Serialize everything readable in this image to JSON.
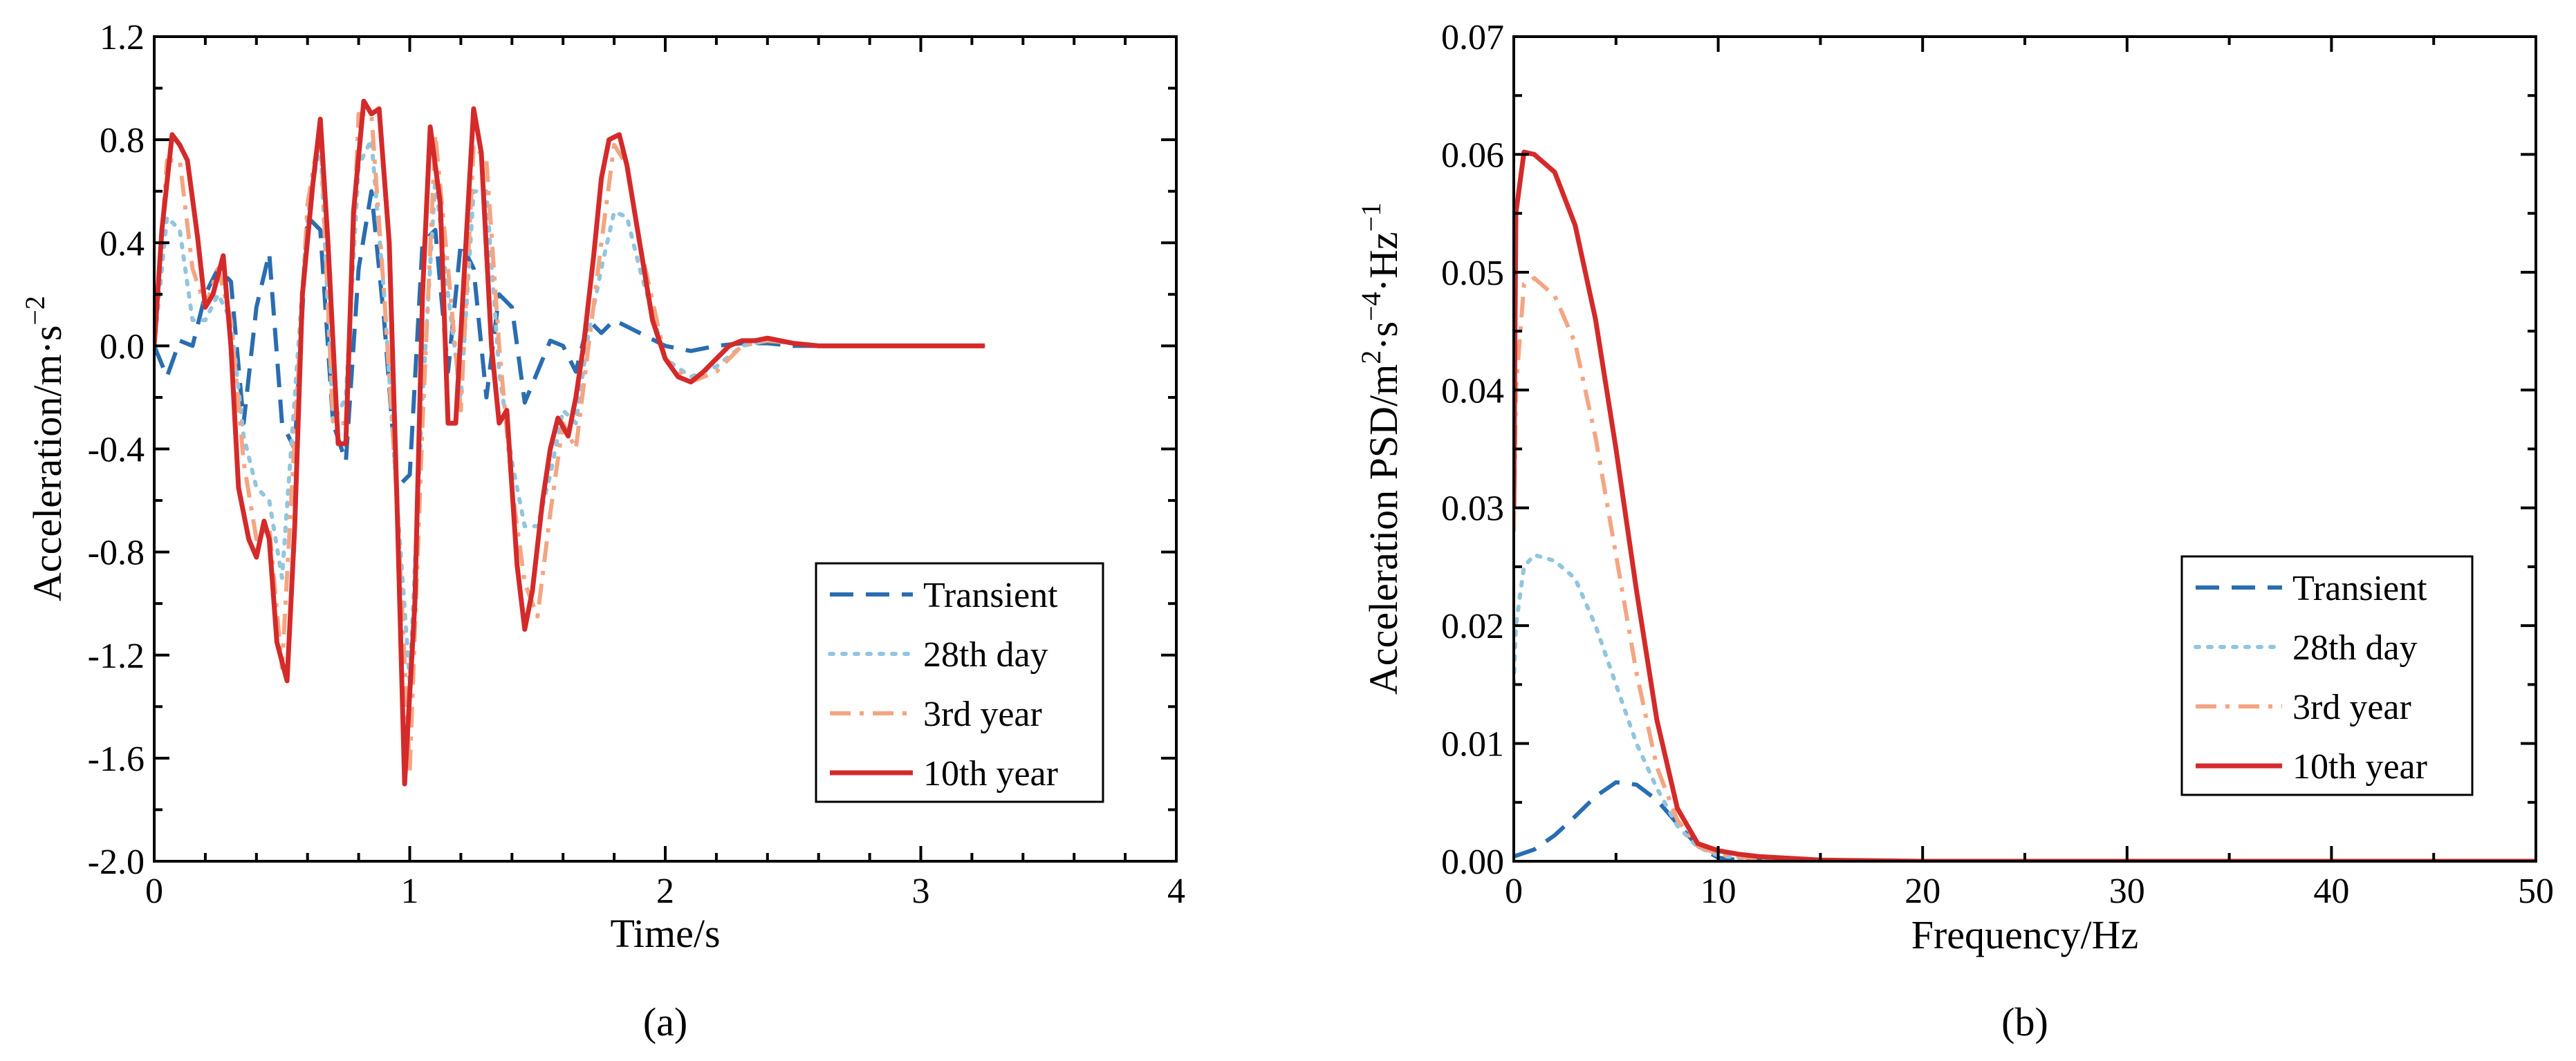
{
  "colors": {
    "transient": "#2a6db0",
    "day28": "#92c5de",
    "year3": "#f4a582",
    "year10": "#d42a2a"
  },
  "chart_data": [
    {
      "type": "line",
      "panel_label": "(a)",
      "xlabel": "Time/s",
      "ylabel": {
        "text": "Acceleration/m·s",
        "sup": "−2"
      },
      "xlim": [
        0,
        4
      ],
      "ylim": [
        -2.0,
        1.2
      ],
      "xticks": [
        0,
        1,
        2,
        3,
        4
      ],
      "xtick_labels": [
        "0",
        "1",
        "2",
        "3",
        "4"
      ],
      "yticks": [
        -2.0,
        -1.6,
        -1.2,
        -0.8,
        -0.4,
        0.0,
        0.4,
        0.8,
        1.2
      ],
      "ytick_labels": [
        "-2.0",
        "-1.6",
        "-1.2",
        "-0.8",
        "-0.4",
        "0.0",
        "0.4",
        "0.8",
        "1.2"
      ],
      "legend_position": "lower-right",
      "series": [
        {
          "name": "Transient",
          "style": "dashed",
          "color_key": "transient",
          "x": [
            0.0,
            0.05,
            0.1,
            0.15,
            0.2,
            0.25,
            0.3,
            0.35,
            0.4,
            0.45,
            0.5,
            0.55,
            0.6,
            0.65,
            0.7,
            0.75,
            0.8,
            0.85,
            0.9,
            0.95,
            1.0,
            1.05,
            1.1,
            1.15,
            1.2,
            1.25,
            1.3,
            1.35,
            1.4,
            1.45,
            1.5,
            1.55,
            1.6,
            1.65,
            1.7,
            1.75,
            1.8,
            1.9,
            2.0,
            2.1,
            2.2,
            2.3,
            2.4,
            2.5,
            2.6,
            2.7,
            2.8,
            2.9,
            3.0,
            3.1,
            3.2,
            3.25
          ],
          "y": [
            0.0,
            -0.12,
            0.02,
            0.0,
            0.2,
            0.3,
            0.25,
            -0.3,
            0.15,
            0.36,
            -0.3,
            -0.4,
            0.5,
            0.45,
            -0.3,
            -0.45,
            0.3,
            0.6,
            0.1,
            -0.55,
            -0.5,
            0.4,
            0.45,
            -0.1,
            0.4,
            0.3,
            -0.2,
            0.2,
            0.15,
            -0.22,
            -0.1,
            0.02,
            0.0,
            -0.1,
            0.1,
            0.05,
            0.1,
            0.05,
            0.0,
            -0.02,
            0.0,
            0.01,
            0.01,
            0.0,
            0.0,
            0.0,
            0.0,
            0.0,
            0.0,
            0.0,
            0.0,
            0.0
          ]
        },
        {
          "name": "28th day",
          "style": "dotted",
          "color_key": "day28",
          "x": [
            0.0,
            0.05,
            0.1,
            0.15,
            0.2,
            0.25,
            0.3,
            0.35,
            0.4,
            0.45,
            0.5,
            0.55,
            0.6,
            0.65,
            0.7,
            0.75,
            0.8,
            0.85,
            0.9,
            0.95,
            1.0,
            1.05,
            1.1,
            1.15,
            1.2,
            1.25,
            1.3,
            1.35,
            1.4,
            1.45,
            1.5,
            1.55,
            1.6,
            1.65,
            1.7,
            1.75,
            1.8,
            1.85,
            1.9,
            2.0,
            2.1,
            2.2,
            2.3,
            2.4,
            2.5,
            2.6,
            2.7,
            2.8,
            2.9,
            3.0,
            3.1,
            3.2,
            3.25
          ],
          "y": [
            0.0,
            0.5,
            0.45,
            0.1,
            0.1,
            0.2,
            0.1,
            -0.35,
            -0.55,
            -0.6,
            -0.9,
            -0.2,
            0.5,
            0.8,
            -0.3,
            -0.2,
            0.7,
            0.8,
            0.2,
            -0.6,
            -1.3,
            -0.2,
            0.65,
            0.2,
            -0.2,
            0.6,
            0.6,
            -0.1,
            -0.45,
            -0.7,
            -0.7,
            -0.5,
            -0.25,
            -0.3,
            0.05,
            0.3,
            0.52,
            0.5,
            0.3,
            -0.05,
            -0.12,
            -0.08,
            0.0,
            0.02,
            0.01,
            0.0,
            0.0,
            0.0,
            0.0,
            0.0,
            0.0,
            0.0,
            0.0
          ]
        },
        {
          "name": "3rd year",
          "style": "dashdot",
          "color_key": "year3",
          "x": [
            0.0,
            0.05,
            0.1,
            0.15,
            0.2,
            0.25,
            0.3,
            0.35,
            0.4,
            0.45,
            0.5,
            0.55,
            0.6,
            0.65,
            0.7,
            0.75,
            0.8,
            0.85,
            0.9,
            0.95,
            1.0,
            1.05,
            1.1,
            1.15,
            1.2,
            1.25,
            1.3,
            1.35,
            1.4,
            1.45,
            1.5,
            1.55,
            1.6,
            1.65,
            1.7,
            1.75,
            1.8,
            1.85,
            1.9,
            2.0,
            2.1,
            2.2,
            2.3,
            2.4,
            2.5,
            2.6,
            2.7,
            2.8,
            2.9,
            3.0,
            3.1,
            3.2,
            3.25
          ],
          "y": [
            0.0,
            0.72,
            0.72,
            0.3,
            0.15,
            0.3,
            0.1,
            -0.45,
            -0.75,
            -0.7,
            -1.25,
            -0.35,
            0.55,
            0.85,
            -0.3,
            -0.3,
            0.9,
            0.9,
            0.2,
            -0.6,
            -1.65,
            -0.3,
            0.82,
            0.3,
            -0.25,
            0.78,
            0.72,
            0.0,
            -0.55,
            -0.92,
            -1.05,
            -0.65,
            -0.3,
            -0.4,
            0.0,
            0.4,
            0.78,
            0.7,
            0.4,
            -0.05,
            -0.14,
            -0.1,
            0.0,
            0.02,
            0.01,
            0.0,
            0.0,
            0.0,
            0.0,
            0.0,
            0.0,
            0.0,
            0.0
          ]
        },
        {
          "name": "10th year",
          "style": "solid",
          "color_key": "year10",
          "x": [
            0.0,
            0.03,
            0.07,
            0.1,
            0.13,
            0.17,
            0.2,
            0.23,
            0.27,
            0.3,
            0.33,
            0.37,
            0.4,
            0.43,
            0.45,
            0.48,
            0.52,
            0.55,
            0.58,
            0.62,
            0.65,
            0.68,
            0.72,
            0.75,
            0.78,
            0.82,
            0.85,
            0.88,
            0.92,
            0.95,
            0.98,
            1.02,
            1.05,
            1.08,
            1.12,
            1.15,
            1.18,
            1.22,
            1.25,
            1.28,
            1.32,
            1.35,
            1.38,
            1.42,
            1.45,
            1.48,
            1.52,
            1.55,
            1.58,
            1.62,
            1.65,
            1.68,
            1.72,
            1.75,
            1.78,
            1.82,
            1.85,
            1.9,
            1.95,
            2.0,
            2.05,
            2.1,
            2.15,
            2.2,
            2.25,
            2.3,
            2.35,
            2.4,
            2.45,
            2.5,
            2.6,
            2.7,
            2.8,
            2.9,
            3.0,
            3.1,
            3.2,
            3.25
          ],
          "y": [
            0.0,
            0.45,
            0.82,
            0.78,
            0.72,
            0.42,
            0.15,
            0.2,
            0.35,
            0.0,
            -0.55,
            -0.75,
            -0.82,
            -0.68,
            -0.75,
            -1.15,
            -1.3,
            -0.7,
            0.2,
            0.62,
            0.88,
            0.4,
            -0.38,
            -0.38,
            0.52,
            0.95,
            0.9,
            0.92,
            0.4,
            -0.6,
            -1.7,
            -1.0,
            0.2,
            0.85,
            0.55,
            -0.3,
            -0.3,
            0.4,
            0.92,
            0.75,
            0.0,
            -0.3,
            -0.25,
            -0.85,
            -1.1,
            -0.95,
            -0.6,
            -0.4,
            -0.28,
            -0.35,
            -0.2,
            0.0,
            0.35,
            0.65,
            0.8,
            0.82,
            0.7,
            0.4,
            0.1,
            -0.05,
            -0.12,
            -0.14,
            -0.1,
            -0.05,
            0.0,
            0.02,
            0.02,
            0.03,
            0.02,
            0.01,
            0.0,
            0.0,
            0.0,
            0.0,
            0.0,
            0.0,
            0.0,
            0.0
          ]
        }
      ]
    },
    {
      "type": "line",
      "panel_label": "(b)",
      "xlabel": "Frequency/Hz",
      "ylabel": {
        "p1": "Acceleration PSD/m",
        "s1": "2",
        "p2": "·s",
        "s2": "−4",
        "p3": "·Hz",
        "s3": "−1"
      },
      "xlim": [
        0,
        50
      ],
      "ylim": [
        0,
        0.07
      ],
      "xticks": [
        0,
        10,
        20,
        30,
        40,
        50
      ],
      "xtick_labels": [
        "0",
        "10",
        "20",
        "30",
        "40",
        "50"
      ],
      "yticks": [
        0,
        0.01,
        0.02,
        0.03,
        0.04,
        0.05,
        0.06,
        0.07
      ],
      "ytick_labels": [
        "0.00",
        "0.01",
        "0.02",
        "0.03",
        "0.04",
        "0.05",
        "0.06",
        "0.07"
      ],
      "legend_position": "right-middle",
      "series": [
        {
          "name": "Transient",
          "style": "dashed",
          "color_key": "transient",
          "x": [
            0,
            1,
            2,
            3,
            4,
            5,
            6,
            7,
            8,
            9,
            10,
            11,
            15,
            20,
            30,
            40,
            50
          ],
          "y": [
            0.0004,
            0.001,
            0.0022,
            0.0038,
            0.0055,
            0.0067,
            0.0065,
            0.0052,
            0.0032,
            0.0013,
            0.0003,
            0.0001,
            0.0,
            0.0,
            0.0,
            0.0,
            0.0
          ]
        },
        {
          "name": "28th day",
          "style": "dotted",
          "color_key": "day28",
          "x": [
            0,
            0.1,
            0.5,
            1,
            2,
            3,
            4,
            5,
            6,
            7,
            8,
            9,
            10,
            11,
            12,
            15,
            20,
            30,
            40,
            50
          ],
          "y": [
            0.015,
            0.02,
            0.025,
            0.026,
            0.0255,
            0.024,
            0.02,
            0.015,
            0.01,
            0.0062,
            0.003,
            0.0012,
            0.0005,
            0.0003,
            0.0002,
            0.0001,
            0.0,
            0.0,
            0.0,
            0.0
          ]
        },
        {
          "name": "3rd year",
          "style": "dashdot",
          "color_key": "year3",
          "x": [
            0,
            0.1,
            0.5,
            1,
            2,
            3,
            4,
            5,
            6,
            7,
            8,
            9,
            10,
            11,
            12,
            15,
            20,
            30,
            40,
            50
          ],
          "y": [
            0.028,
            0.04,
            0.049,
            0.0495,
            0.048,
            0.044,
            0.036,
            0.026,
            0.016,
            0.008,
            0.0035,
            0.0013,
            0.0006,
            0.0004,
            0.0002,
            0.0001,
            0.0,
            0.0,
            0.0,
            0.0
          ]
        },
        {
          "name": "10th year",
          "style": "solid",
          "color_key": "year10",
          "x": [
            0,
            0.1,
            0.5,
            1,
            2,
            3,
            4,
            5,
            6,
            7,
            8,
            9,
            10,
            11,
            12,
            15,
            20,
            30,
            40,
            50
          ],
          "y": [
            0.03,
            0.055,
            0.0602,
            0.06,
            0.0585,
            0.054,
            0.046,
            0.035,
            0.023,
            0.012,
            0.0045,
            0.0015,
            0.0009,
            0.0006,
            0.0004,
            0.0001,
            0.0,
            0.0,
            0.0,
            0.0
          ]
        }
      ]
    }
  ]
}
